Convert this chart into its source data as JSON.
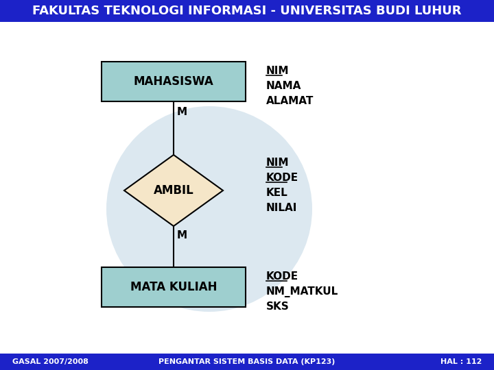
{
  "title": "FAKULTAS TEKNOLOGI INFORMASI - UNIVERSITAS BUDI LUHUR",
  "title_bg": "#1c22c8",
  "title_color": "#ffffff",
  "footer_bg": "#1c22c8",
  "footer_color": "#ffffff",
  "footer_left": "GASAL 2007/2008",
  "footer_mid": "PENGANTAR SISTEM BASIS DATA (KP123)",
  "footer_right": "HAL : 112",
  "bg_color": "#ffffff",
  "watermark_color": "#dce8f0",
  "box_fill": "#9ecfcf",
  "box_edge": "#000000",
  "diamond_fill": "#f5e6c8",
  "diamond_edge": "#000000",
  "mahasiswa_label": "MAHASISWA",
  "mahasiswa_attrs_underline": [
    "NIM"
  ],
  "mahasiswa_attrs": [
    "NIM",
    "NAMA",
    "ALAMAT"
  ],
  "ambil_label": "AMBIL",
  "ambil_attrs_underline": [
    "NIM",
    "KODE"
  ],
  "ambil_attrs": [
    "NIM",
    "KODE",
    "KEL",
    "NILAI"
  ],
  "matakuliah_label": "MATA KULIAH",
  "matakuliah_attrs_underline": [
    "KODE"
  ],
  "matakuliah_attrs": [
    "KODE",
    "NM_MATKUL",
    "SKS"
  ],
  "m_label": "M",
  "line_color": "#000000"
}
